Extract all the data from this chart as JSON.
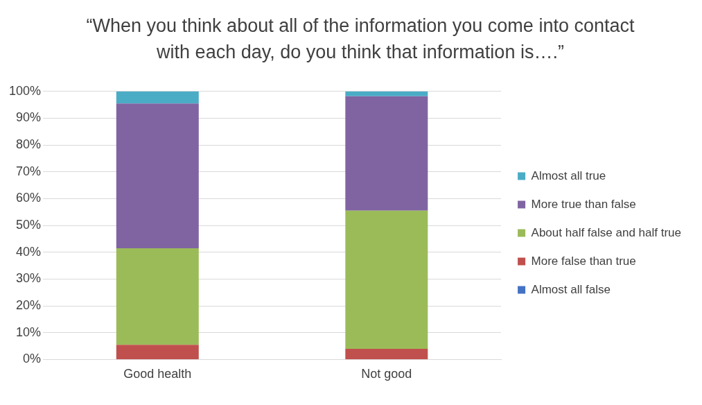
{
  "chart_data": {
    "type": "bar",
    "stacked": true,
    "title": "“When you think about all of the information you come into contact with each day, do you think that information is….”",
    "categories": [
      "Good health",
      "Not good"
    ],
    "series": [
      {
        "name": "Almost all false",
        "color": "#4472c4",
        "values": [
          0,
          0
        ]
      },
      {
        "name": "More false than true",
        "color": "#c0504d",
        "values": [
          5.5,
          4
        ]
      },
      {
        "name": "About half false and half true",
        "color": "#9bbb59",
        "values": [
          36,
          51.5
        ]
      },
      {
        "name": "More true than false",
        "color": "#8064a2",
        "values": [
          54,
          42.7
        ]
      },
      {
        "name": "Almost all true",
        "color": "#4bacc6",
        "values": [
          4.5,
          1.8
        ]
      }
    ],
    "ylim": [
      0,
      100
    ],
    "yticks": [
      {
        "value": 0,
        "label": "0%"
      },
      {
        "value": 10,
        "label": "10%"
      },
      {
        "value": 20,
        "label": "20%"
      },
      {
        "value": 30,
        "label": "30%"
      },
      {
        "value": 40,
        "label": "40%"
      },
      {
        "value": 50,
        "label": "50%"
      },
      {
        "value": 60,
        "label": "60%"
      },
      {
        "value": 70,
        "label": "70%"
      },
      {
        "value": 80,
        "label": "80%"
      },
      {
        "value": 90,
        "label": "90%"
      },
      {
        "value": 100,
        "label": "100%"
      }
    ],
    "grid": "y",
    "legend": "right"
  }
}
